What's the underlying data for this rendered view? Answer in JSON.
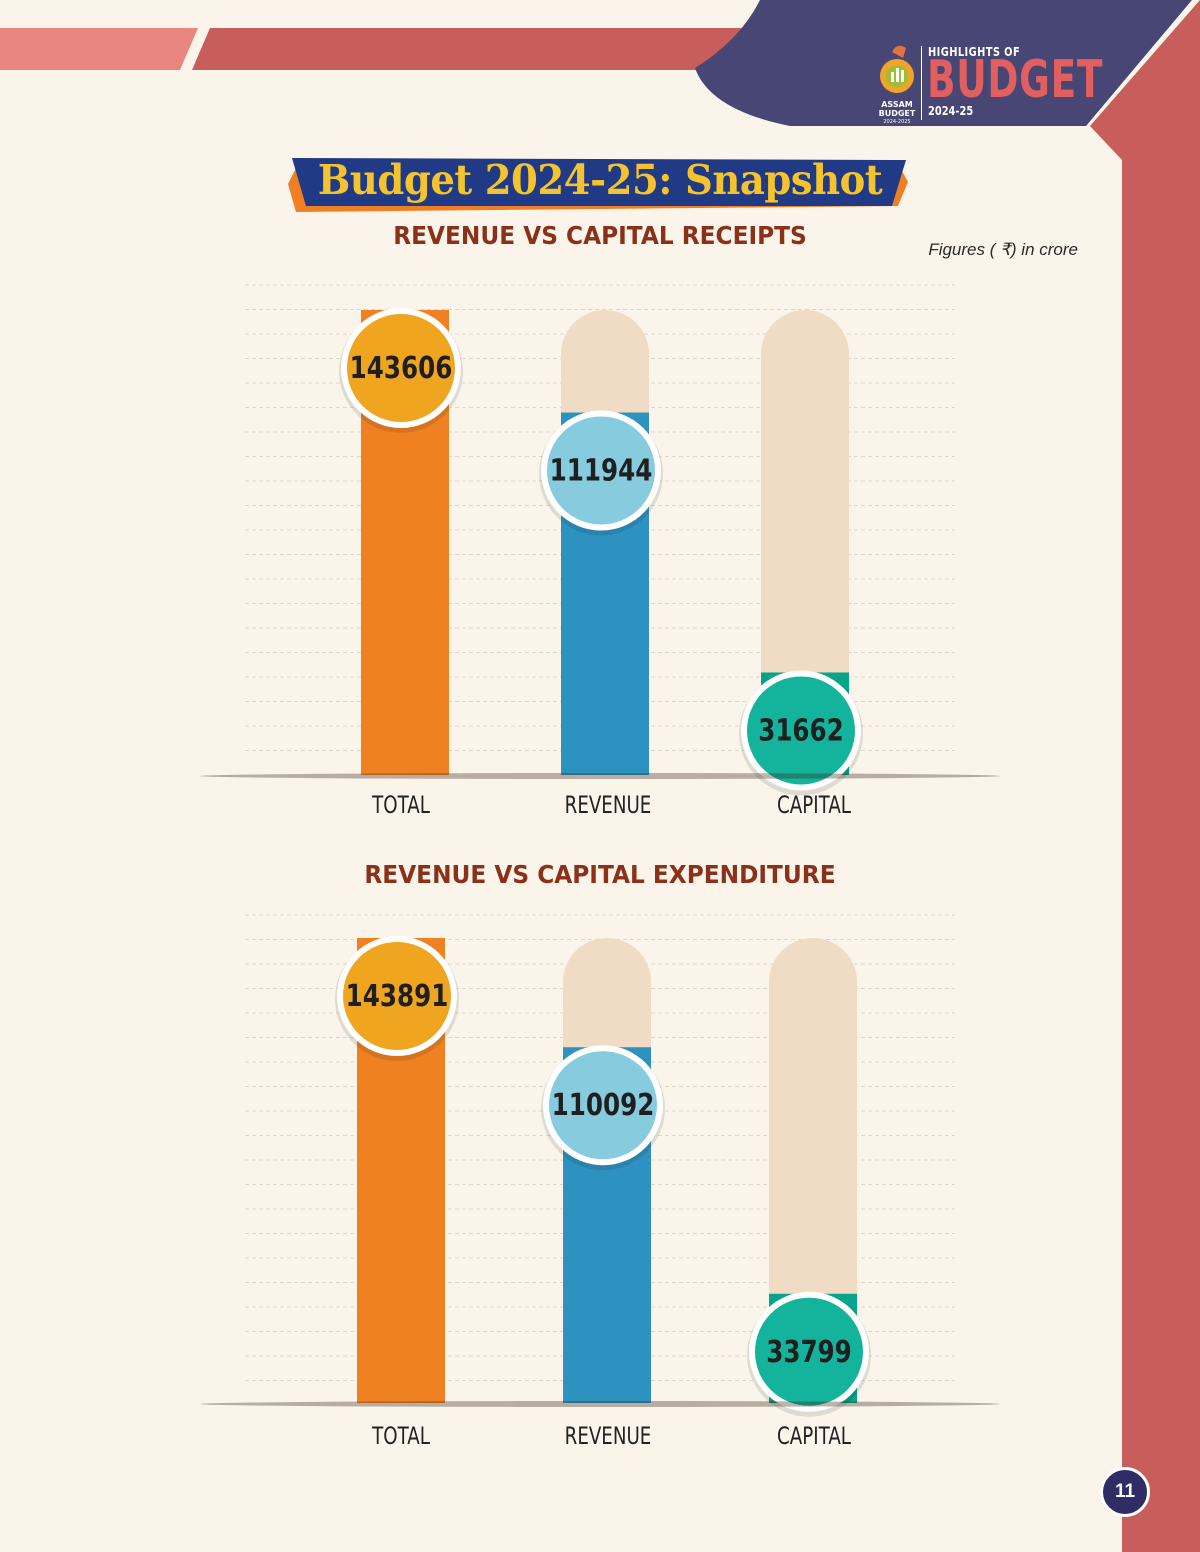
{
  "header": {
    "brand_line1": "HIGHLIGHTS OF",
    "brand_line2": "BUDGET",
    "brand_line3": "2024-25",
    "logo_text_1": "ASSAM",
    "logo_text_2": "BUDGET",
    "logo_text_3": "2024-2025"
  },
  "page_title": "Budget 2024-25: Snapshot",
  "units_note": "Figures ( ₹) in crore",
  "page_number": "11",
  "colors": {
    "total": "#ef8123",
    "total_badge": "#efa51f",
    "revenue": "#2e92c0",
    "revenue_badge": "#87cbdf",
    "capital": "#07a48a",
    "capital_badge": "#13b39c",
    "bar_track": "#f0dcc4",
    "header_navy": "#484675",
    "accent_red": "#c75e5c",
    "title_brown": "#8b3019"
  },
  "chart_data": [
    {
      "type": "bar",
      "title": "REVENUE VS CAPITAL RECEIPTS",
      "categories": [
        "TOTAL",
        "REVENUE",
        "CAPITAL"
      ],
      "values": [
        143606,
        111944,
        31662
      ],
      "ylim": [
        0,
        143606
      ],
      "grid": true,
      "legend": "none"
    },
    {
      "type": "bar",
      "title": "REVENUE VS CAPITAL EXPENDITURE",
      "categories": [
        "TOTAL",
        "REVENUE",
        "CAPITAL"
      ],
      "values": [
        143891,
        110092,
        33799
      ],
      "ylim": [
        0,
        143891
      ],
      "grid": true,
      "legend": "none"
    }
  ]
}
